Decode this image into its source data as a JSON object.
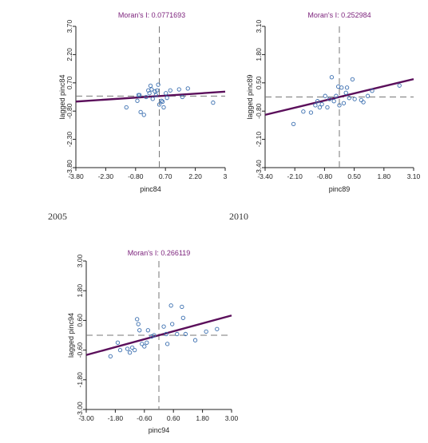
{
  "captions": {
    "left": "2005",
    "right": "2010"
  },
  "colors": {
    "title": "#7a1f7a",
    "point": "#3b6fb0",
    "regression": "#5b0f5b",
    "axis": "#222222",
    "reference": "#777777"
  },
  "chart_data": [
    {
      "type": "scatter",
      "title": "Moran's I: 0.0771693",
      "xlabel": "pinc84",
      "ylabel": "lagged pinc84",
      "xlim": [
        -3.8,
        3.0
      ],
      "ylim": [
        -3.8,
        3.7
      ],
      "xticks": [
        "-3.80",
        "-2.30",
        "-0.80",
        "0.70",
        "2.20",
        "3"
      ],
      "yticks": [
        "-3.80",
        "-2.30",
        "-0.80",
        "0.70",
        "2.20",
        "3.70"
      ],
      "x_reference": 0,
      "y_reference": 0,
      "regression": {
        "slope": 0.0771693,
        "intercept": 0
      },
      "points": [
        [
          -1.5,
          -0.6
        ],
        [
          -1.0,
          -0.25
        ],
        [
          -0.95,
          0.05
        ],
        [
          -0.9,
          0.05
        ],
        [
          -0.85,
          -0.85
        ],
        [
          -0.7,
          -1.0
        ],
        [
          -0.6,
          -0.05
        ],
        [
          -0.45,
          0.15
        ],
        [
          -0.4,
          0.55
        ],
        [
          -0.35,
          0.35
        ],
        [
          -0.3,
          -0.15
        ],
        [
          -0.2,
          0.25
        ],
        [
          -0.15,
          0.05
        ],
        [
          -0.1,
          0.3
        ],
        [
          -0.05,
          0.6
        ],
        [
          0.0,
          -0.45
        ],
        [
          0.1,
          -0.25
        ],
        [
          0.2,
          -0.6
        ],
        [
          0.3,
          0.15
        ],
        [
          0.35,
          -0.1
        ],
        [
          0.5,
          0.3
        ],
        [
          0.9,
          0.35
        ],
        [
          1.05,
          -0.05
        ],
        [
          1.3,
          0.4
        ],
        [
          2.45,
          -0.35
        ],
        [
          -0.5,
          0.3
        ],
        [
          0.15,
          -0.3
        ]
      ]
    },
    {
      "type": "scatter",
      "title": "Moran's I: 0.252984",
      "xlabel": "pinc89",
      "ylabel": "lagged pinc89",
      "xlim": [
        -3.4,
        3.4
      ],
      "ylim": [
        -3.4,
        3.4
      ],
      "xticks": [
        "-3.40",
        "-2.10",
        "-0.80",
        "0.50",
        "1.80",
        "3.10"
      ],
      "yticks": [
        "-3.40",
        "-2.10",
        "-0.80",
        "0.50",
        "1.80",
        "3.10"
      ],
      "x_reference": 0,
      "y_reference": 0,
      "regression": {
        "slope": 0.252984,
        "intercept": 0
      },
      "points": [
        [
          -2.1,
          -1.3
        ],
        [
          -1.65,
          -0.7
        ],
        [
          -1.3,
          -0.75
        ],
        [
          -1.1,
          -0.4
        ],
        [
          -1.0,
          -0.2
        ],
        [
          -0.9,
          -0.5
        ],
        [
          -0.8,
          -0.35
        ],
        [
          -0.65,
          0.05
        ],
        [
          -0.55,
          -0.5
        ],
        [
          -0.45,
          -0.1
        ],
        [
          -0.35,
          0.95
        ],
        [
          -0.25,
          -0.2
        ],
        [
          -0.15,
          0.05
        ],
        [
          -0.05,
          0.5
        ],
        [
          0.0,
          -0.4
        ],
        [
          0.1,
          0.45
        ],
        [
          0.2,
          -0.3
        ],
        [
          0.3,
          0.2
        ],
        [
          0.45,
          -0.05
        ],
        [
          0.6,
          0.85
        ],
        [
          0.7,
          -0.1
        ],
        [
          1.0,
          -0.15
        ],
        [
          1.1,
          -0.25
        ],
        [
          1.3,
          0.05
        ],
        [
          1.5,
          0.3
        ],
        [
          2.75,
          0.55
        ],
        [
          0.35,
          0.45
        ]
      ]
    },
    {
      "type": "scatter",
      "title": "Moran's I: 0.266119",
      "xlabel": "pinc94",
      "ylabel": "lagged pinc94",
      "xlim": [
        -3.0,
        3.0
      ],
      "ylim": [
        -3.0,
        3.0
      ],
      "xticks": [
        "-3.00",
        "-1.80",
        "-0.60",
        "0.60",
        "1.80",
        "3.00"
      ],
      "yticks": [
        "-3.00",
        "-1.80",
        "-0.60",
        "0.60",
        "1.80",
        "3.00"
      ],
      "x_reference": 0,
      "y_reference": 0,
      "regression": {
        "slope": 0.266119,
        "intercept": 0
      },
      "points": [
        [
          -2.0,
          -0.85
        ],
        [
          -1.7,
          -0.3
        ],
        [
          -1.6,
          -0.6
        ],
        [
          -1.3,
          -0.55
        ],
        [
          -1.2,
          -0.7
        ],
        [
          -1.1,
          -0.5
        ],
        [
          -1.0,
          -0.6
        ],
        [
          -0.9,
          0.65
        ],
        [
          -0.85,
          0.45
        ],
        [
          -0.8,
          0.2
        ],
        [
          -0.7,
          -0.35
        ],
        [
          -0.6,
          -0.45
        ],
        [
          -0.5,
          -0.3
        ],
        [
          -0.45,
          0.2
        ],
        [
          -0.3,
          -0.05
        ],
        [
          -0.2,
          0.0
        ],
        [
          0.2,
          0.35
        ],
        [
          0.35,
          -0.35
        ],
        [
          0.5,
          1.2
        ],
        [
          0.55,
          0.45
        ],
        [
          0.75,
          0.05
        ],
        [
          0.95,
          1.15
        ],
        [
          1.0,
          0.7
        ],
        [
          1.1,
          0.05
        ],
        [
          1.5,
          -0.2
        ],
        [
          1.95,
          0.15
        ],
        [
          2.4,
          0.25
        ],
        [
          0.3,
          0.05
        ]
      ]
    }
  ]
}
